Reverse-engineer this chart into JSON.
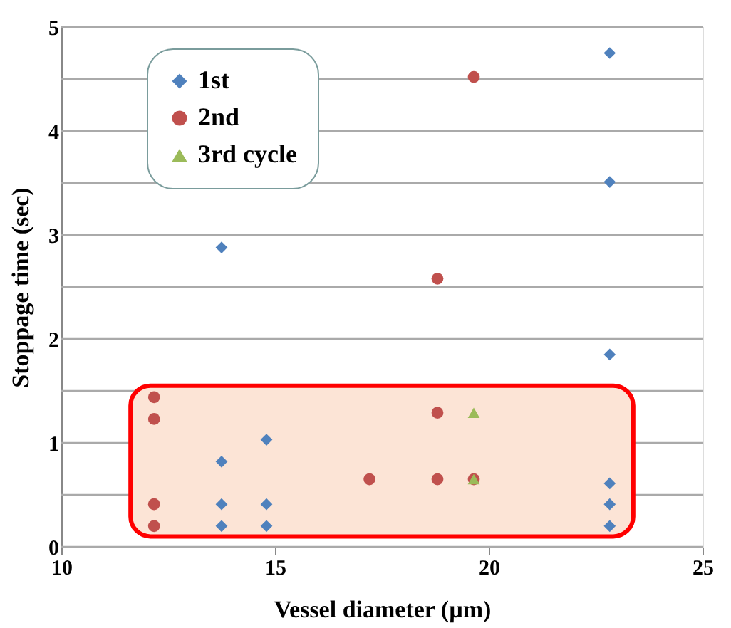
{
  "chart_data": {
    "type": "scatter",
    "xlabel": "Vessel diameter (µm)",
    "ylabel": "Stoppage time (sec)",
    "xlim": [
      10,
      25
    ],
    "xticks": [
      10,
      15,
      20,
      25
    ],
    "ylim": [
      0,
      5
    ],
    "yticks": [
      0,
      {
        "value": 0.5,
        "label": null
      },
      1,
      {
        "value": 1.5,
        "label": null
      },
      2,
      {
        "value": 2.5,
        "label": null
      },
      3,
      {
        "value": 3.5,
        "label": null
      },
      4,
      {
        "value": 4.5,
        "label": null
      },
      5
    ],
    "grid": "y",
    "legend": "top left",
    "series": [
      {
        "name": "1st",
        "color": "#4f81bd",
        "marker": "diamond",
        "x": [
          13.75,
          13.75,
          13.75,
          13.75,
          14.8,
          14.8,
          14.8,
          22.83,
          22.83,
          22.83,
          22.83,
          22.83,
          22.83
        ],
        "values": [
          2.88,
          0.82,
          0.41,
          0.2,
          1.03,
          0.41,
          0.2,
          4.75,
          3.51,
          1.85,
          0.61,
          0.41,
          0.2
        ]
      },
      {
        "name": "2nd",
        "color": "#c0504d",
        "marker": "circle",
        "x": [
          12.17,
          12.17,
          12.17,
          12.17,
          17.21,
          18.8,
          18.8,
          18.8,
          19.65,
          19.65
        ],
        "values": [
          1.44,
          1.23,
          0.41,
          0.2,
          0.65,
          2.58,
          1.29,
          0.65,
          4.52,
          0.65
        ]
      },
      {
        "name": "3rd cycle",
        "color": "#9bbb59",
        "marker": "triangle",
        "x": [
          19.65,
          19.65
        ],
        "values": [
          1.29,
          0.65
        ]
      }
    ],
    "bands": [
      {
        "axis": "y",
        "from": 0.1,
        "to": 1.55,
        "color": "#fce4d6"
      }
    ]
  }
}
